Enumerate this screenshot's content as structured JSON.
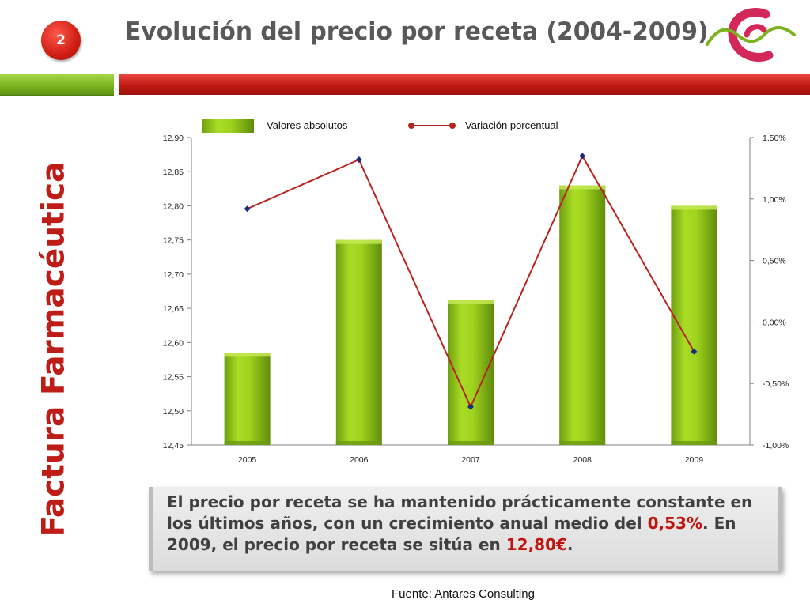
{
  "header": {
    "badge_number": "2",
    "title": "Evolución del precio por receta (2004-2009)"
  },
  "side_title": "Factura Farmacéutica",
  "colors": {
    "accent_red": "#c0140f",
    "accent_green": "#8fc21a",
    "line_series": "#b8231d",
    "line_markers": "#1a2a80"
  },
  "summary": {
    "part1": "El precio por receta se ha mantenido prácticamente constante en los últimos años, con un crecimiento anual medio del ",
    "highlight1": "0,53%",
    "part2": ". En 2009, el precio por receta se sitúa en ",
    "highlight2": "12,80€",
    "part3": "."
  },
  "source": "Fuente: Antares Consulting",
  "chart_data": {
    "type": "bar",
    "categories": [
      "2005",
      "2006",
      "2007",
      "2008",
      "2009"
    ],
    "series": [
      {
        "name": "Valores absolutos",
        "type": "bar",
        "axis": "left",
        "values": [
          12.585,
          12.75,
          12.662,
          12.83,
          12.8
        ]
      },
      {
        "name": "Variación porcentual",
        "type": "line",
        "axis": "right",
        "values": [
          0.92,
          1.32,
          -0.69,
          1.35,
          -0.24
        ]
      }
    ],
    "y_left": {
      "min": 12.45,
      "max": 12.9,
      "ticks": [
        12.45,
        12.5,
        12.55,
        12.6,
        12.65,
        12.7,
        12.75,
        12.8,
        12.85,
        12.9
      ],
      "tick_labels": [
        "12,45",
        "12,50",
        "12,55",
        "12,60",
        "12,65",
        "12,70",
        "12,75",
        "12,80",
        "12,85",
        "12,90"
      ]
    },
    "y_right": {
      "min": -1.0,
      "max": 1.5,
      "ticks": [
        -1.0,
        -0.5,
        0.0,
        0.5,
        1.0,
        1.5
      ],
      "tick_labels": [
        "-1,00%",
        "-0,50%",
        "0,00%",
        "0,50%",
        "1,00%",
        "1,50%"
      ]
    },
    "legend": {
      "position": "top",
      "entries": [
        "Valores absolutos",
        "Variación porcentual"
      ]
    },
    "grid": false
  }
}
